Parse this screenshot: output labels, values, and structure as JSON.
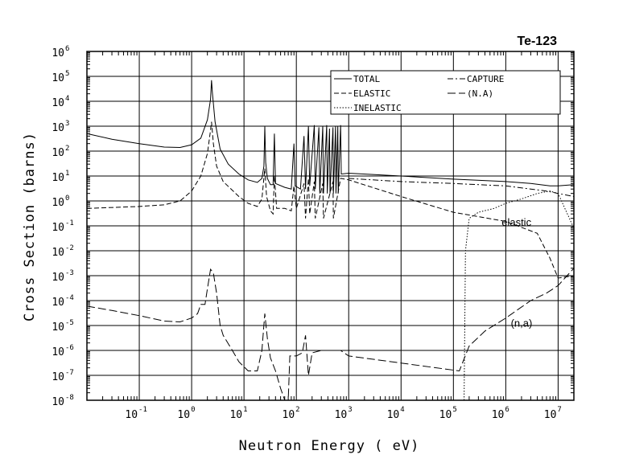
{
  "chart_data": {
    "type": "line",
    "title": "Te-123",
    "xlabel": "Neutron Energy ( eV)",
    "ylabel": "Cross Section (barns)",
    "x_scale": "log",
    "y_scale": "log",
    "xlim": [
      0.01,
      20000000
    ],
    "ylim": [
      1e-08,
      1000000
    ],
    "grid": true,
    "x_ticks": [
      {
        "base": "10",
        "exp": "-1"
      },
      {
        "base": "10",
        "exp": "0"
      },
      {
        "base": "10",
        "exp": "1"
      },
      {
        "base": "10",
        "exp": "2"
      },
      {
        "base": "10",
        "exp": "3"
      },
      {
        "base": "10",
        "exp": "4"
      },
      {
        "base": "10",
        "exp": "5"
      },
      {
        "base": "10",
        "exp": "6"
      },
      {
        "base": "10",
        "exp": "7"
      }
    ],
    "y_ticks": [
      {
        "base": "10",
        "exp": "-8"
      },
      {
        "base": "10",
        "exp": "-7"
      },
      {
        "base": "10",
        "exp": "-6"
      },
      {
        "base": "10",
        "exp": "-5"
      },
      {
        "base": "10",
        "exp": "-4"
      },
      {
        "base": "10",
        "exp": "-3"
      },
      {
        "base": "10",
        "exp": "-2"
      },
      {
        "base": "10",
        "exp": "-1"
      },
      {
        "base": "10",
        "exp": "0"
      },
      {
        "base": "10",
        "exp": "1"
      },
      {
        "base": "10",
        "exp": "2"
      },
      {
        "base": "10",
        "exp": "3"
      },
      {
        "base": "10",
        "exp": "4"
      },
      {
        "base": "10",
        "exp": "5"
      },
      {
        "base": "10",
        "exp": "6"
      }
    ],
    "legend_position": "top-right",
    "legend": [
      {
        "label": "TOTAL",
        "dash": "solid"
      },
      {
        "label": "CAPTURE",
        "dash": "dashdot"
      },
      {
        "label": "ELASTIC",
        "dash": "dashed"
      },
      {
        "label": "(N.A)",
        "dash": "longdash"
      },
      {
        "label": "INELASTIC",
        "dash": "dotted"
      }
    ],
    "annotations": [
      {
        "text": "elastic",
        "x": 1600000,
        "y": 0.1
      },
      {
        "text": "(n,a)",
        "x": 2000000,
        "y": 9e-06
      }
    ],
    "series": [
      {
        "name": "TOTAL",
        "dash": "solid",
        "points": [
          [
            0.01,
            500
          ],
          [
            0.03,
            300
          ],
          [
            0.1,
            200
          ],
          [
            0.3,
            145
          ],
          [
            0.6,
            140
          ],
          [
            1.0,
            180
          ],
          [
            1.5,
            330
          ],
          [
            2.0,
            1800
          ],
          [
            2.3,
            12000
          ],
          [
            2.4,
            70000
          ],
          [
            2.5,
            20000
          ],
          [
            2.8,
            1500
          ],
          [
            3.5,
            120
          ],
          [
            5,
            30
          ],
          [
            8,
            12
          ],
          [
            12,
            7
          ],
          [
            18,
            5.5
          ],
          [
            22,
            8
          ],
          [
            24,
            25
          ],
          [
            25,
            1000
          ],
          [
            26,
            35
          ],
          [
            28,
            8
          ],
          [
            32,
            4.5
          ],
          [
            36,
            4.5
          ],
          [
            38,
            500
          ],
          [
            40,
            5
          ],
          [
            60,
            3.5
          ],
          [
            80,
            3
          ],
          [
            90,
            200
          ],
          [
            95,
            4
          ],
          [
            120,
            3
          ],
          [
            140,
            400
          ],
          [
            150,
            3
          ],
          [
            170,
            1000
          ],
          [
            180,
            4
          ],
          [
            220,
            1100
          ],
          [
            230,
            3
          ],
          [
            270,
            900
          ],
          [
            280,
            2
          ],
          [
            320,
            1000
          ],
          [
            330,
            2
          ],
          [
            380,
            1100
          ],
          [
            390,
            2
          ],
          [
            430,
            800
          ],
          [
            440,
            2
          ],
          [
            500,
            900
          ],
          [
            510,
            2
          ],
          [
            560,
            1000
          ],
          [
            570,
            2
          ],
          [
            620,
            1000
          ],
          [
            630,
            2
          ],
          [
            700,
            1100
          ],
          [
            720,
            12
          ],
          [
            1000,
            13
          ],
          [
            10000,
            10
          ],
          [
            100000,
            7.5
          ],
          [
            1000000,
            6
          ],
          [
            3000000,
            5
          ],
          [
            7000000,
            4
          ],
          [
            10000000,
            4
          ],
          [
            20000000,
            4.5
          ]
        ]
      },
      {
        "name": "ELASTIC",
        "dash": "dashed",
        "points": [
          [
            0.01,
            0.5
          ],
          [
            0.1,
            0.6
          ],
          [
            0.3,
            0.7
          ],
          [
            0.6,
            1.0
          ],
          [
            1.0,
            2.5
          ],
          [
            1.5,
            10
          ],
          [
            2.0,
            80
          ],
          [
            2.3,
            700
          ],
          [
            2.4,
            1500
          ],
          [
            2.6,
            200
          ],
          [
            3.0,
            25
          ],
          [
            4,
            6
          ],
          [
            8,
            1.5
          ],
          [
            12,
            0.8
          ],
          [
            18,
            0.6
          ],
          [
            22,
            1.2
          ],
          [
            25,
            20
          ],
          [
            27,
            1.5
          ],
          [
            32,
            0.4
          ],
          [
            36,
            0.3
          ],
          [
            38,
            10
          ],
          [
            42,
            0.5
          ],
          [
            60,
            0.5
          ],
          [
            80,
            0.4
          ],
          [
            90,
            4
          ],
          [
            100,
            0.5
          ],
          [
            140,
            5
          ],
          [
            150,
            0.2
          ],
          [
            170,
            8
          ],
          [
            180,
            0.3
          ],
          [
            220,
            6
          ],
          [
            230,
            0.2
          ],
          [
            320,
            5
          ],
          [
            330,
            0.2
          ],
          [
            500,
            6
          ],
          [
            510,
            0.2
          ],
          [
            700,
            8
          ],
          [
            720,
            8
          ],
          [
            1000,
            7
          ],
          [
            10000,
            1.5
          ],
          [
            100000,
            0.35
          ],
          [
            1000000,
            0.15
          ],
          [
            4000000,
            0.05
          ],
          [
            7000000,
            0.005
          ],
          [
            10000000,
            0.0008
          ],
          [
            20000000,
            0.001
          ]
        ]
      },
      {
        "name": "CAPTURE",
        "dash": "dashdot",
        "points": [
          [
            1000,
            8
          ],
          [
            10000,
            6
          ],
          [
            100000,
            5
          ],
          [
            1000000,
            4
          ],
          [
            3000000,
            3
          ],
          [
            6000000,
            2.5
          ],
          [
            10000000,
            2
          ],
          [
            20000000,
            1.5
          ]
        ]
      },
      {
        "name": "INELASTIC",
        "dash": "dotted",
        "points": [
          [
            160000,
            1e-08
          ],
          [
            170000,
            0.01
          ],
          [
            200000,
            0.2
          ],
          [
            300000,
            0.35
          ],
          [
            600000,
            0.5
          ],
          [
            1000000,
            0.8
          ],
          [
            2000000,
            1.2
          ],
          [
            4000000,
            2
          ],
          [
            7000000,
            2.5
          ],
          [
            10000000,
            2
          ],
          [
            20000000,
            0.08
          ]
        ]
      },
      {
        "name": "(N.A)",
        "dash": "longdash",
        "points": [
          [
            0.01,
            6e-05
          ],
          [
            0.03,
            4e-05
          ],
          [
            0.1,
            2.5e-05
          ],
          [
            0.3,
            1.5e-05
          ],
          [
            0.6,
            1.4e-05
          ],
          [
            1.0,
            2e-05
          ],
          [
            1.3,
            3e-05
          ],
          [
            1.5,
            7e-05
          ],
          [
            1.8,
            7e-05
          ],
          [
            2.0,
            0.0003
          ],
          [
            2.3,
            0.0018
          ],
          [
            2.6,
            0.0013
          ],
          [
            3.0,
            0.0002
          ],
          [
            3.5,
            1e-05
          ],
          [
            4,
            4e-06
          ],
          [
            6,
            1e-06
          ],
          [
            8,
            3.5e-07
          ],
          [
            12,
            1.5e-07
          ],
          [
            18,
            1.5e-07
          ],
          [
            22,
            1e-06
          ],
          [
            25,
            3e-05
          ],
          [
            28,
            3e-06
          ],
          [
            32,
            5e-07
          ],
          [
            40,
            1.5e-07
          ],
          [
            50,
            3e-08
          ],
          [
            60,
            1e-08
          ],
          [
            70,
            1e-08
          ],
          [
            75,
            6e-07
          ],
          [
            100,
            6e-07
          ],
          [
            130,
            8e-07
          ],
          [
            150,
            4e-06
          ],
          [
            170,
            1e-07
          ],
          [
            200,
            8e-07
          ],
          [
            300,
            1e-06
          ],
          [
            700,
            1e-06
          ],
          [
            1000,
            6e-07
          ],
          [
            130000,
            1.5e-07
          ],
          [
            200000,
            1.5e-06
          ],
          [
            400000,
            6e-06
          ],
          [
            1000000,
            2e-05
          ],
          [
            3000000,
            0.0001
          ],
          [
            6000000,
            0.0002
          ],
          [
            10000000,
            0.0004
          ],
          [
            20000000,
            0.002
          ]
        ]
      }
    ]
  }
}
